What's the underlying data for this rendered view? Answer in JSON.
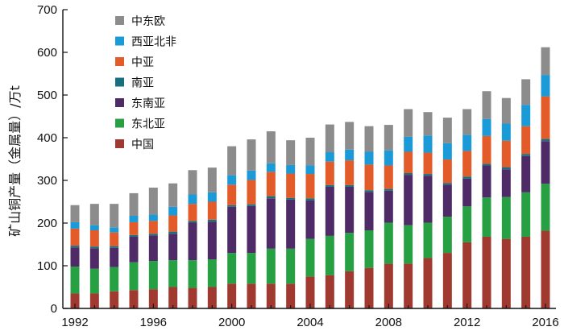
{
  "chart_data": {
    "type": "bar",
    "stacked": true,
    "ylabel": "矿山铜产量（金属量）/万t",
    "xlabel": "",
    "ylim": [
      0,
      700
    ],
    "yticks": [
      0,
      100,
      200,
      300,
      400,
      500,
      600,
      700
    ],
    "xticks": [
      "1992",
      "1996",
      "2000",
      "2004",
      "2008",
      "2012",
      "2016"
    ],
    "grid": false,
    "legend_position": "top-left",
    "categories": [
      "1992",
      "1993",
      "1994",
      "1995",
      "1996",
      "1997",
      "1998",
      "1999",
      "2000",
      "2001",
      "2002",
      "2003",
      "2004",
      "2005",
      "2006",
      "2007",
      "2008",
      "2009",
      "2010",
      "2011",
      "2012",
      "2013",
      "2014",
      "2015",
      "2016"
    ],
    "series": [
      {
        "name": "中国",
        "color": "#a0392f",
        "values": [
          35,
          35,
          40,
          43,
          45,
          50,
          48,
          50,
          58,
          58,
          58,
          58,
          75,
          78,
          87,
          95,
          105,
          105,
          118,
          130,
          155,
          168,
          163,
          168,
          182
        ]
      },
      {
        "name": "东北亚",
        "color": "#27a044",
        "values": [
          63,
          58,
          57,
          65,
          66,
          63,
          65,
          65,
          72,
          72,
          82,
          82,
          88,
          92,
          90,
          88,
          96,
          90,
          83,
          85,
          84,
          92,
          98,
          104,
          110
        ]
      },
      {
        "name": "东南亚",
        "color": "#4e2a67",
        "values": [
          45,
          48,
          45,
          60,
          60,
          62,
          88,
          88,
          108,
          110,
          118,
          115,
          90,
          115,
          108,
          90,
          75,
          118,
          110,
          75,
          65,
          75,
          65,
          85,
          100
        ]
      },
      {
        "name": "南亚",
        "color": "#18707f",
        "values": [
          4,
          4,
          4,
          4,
          4,
          5,
          4,
          5,
          4,
          4,
          5,
          4,
          5,
          4,
          4,
          4,
          4,
          4,
          4,
          4,
          5,
          4,
          5,
          5,
          5
        ]
      },
      {
        "name": "中亚",
        "color": "#e35b29",
        "values": [
          40,
          38,
          32,
          30,
          30,
          38,
          40,
          42,
          48,
          57,
          57,
          57,
          57,
          55,
          58,
          60,
          55,
          50,
          50,
          55,
          60,
          65,
          62,
          65,
          100
        ]
      },
      {
        "name": "西亚北非",
        "color": "#1b9ad8",
        "values": [
          15,
          12,
          12,
          15,
          15,
          20,
          22,
          22,
          22,
          22,
          20,
          20,
          20,
          22,
          25,
          30,
          35,
          35,
          40,
          38,
          38,
          40,
          40,
          50,
          50
        ]
      },
      {
        "name": "中东欧",
        "color": "#8d8c8c",
        "values": [
          40,
          50,
          55,
          53,
          63,
          55,
          57,
          58,
          68,
          73,
          75,
          58,
          65,
          65,
          65,
          60,
          60,
          65,
          55,
          60,
          60,
          65,
          60,
          60,
          65
        ]
      }
    ]
  }
}
